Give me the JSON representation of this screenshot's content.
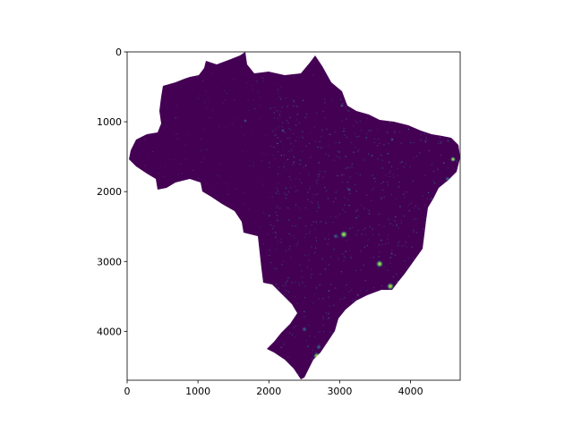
{
  "plot": {
    "type": "raster-image",
    "colormap": "viridis",
    "x_range": [
      0,
      4700
    ],
    "y_range": [
      0,
      4700
    ],
    "y_inverted": true,
    "x_ticks": [
      {
        "value": 0,
        "label": "0"
      },
      {
        "value": 1000,
        "label": "1000"
      },
      {
        "value": 2000,
        "label": "2000"
      },
      {
        "value": 3000,
        "label": "3000"
      },
      {
        "value": 4000,
        "label": "4000"
      }
    ],
    "y_ticks": [
      {
        "value": 0,
        "label": "0"
      },
      {
        "value": 1000,
        "label": "1000"
      },
      {
        "value": 2000,
        "label": "2000"
      },
      {
        "value": 3000,
        "label": "3000"
      },
      {
        "value": 4000,
        "label": "4000"
      }
    ],
    "colors": {
      "background_value": "#440154",
      "mid_value": "#3b528b",
      "high_value": "#21918c",
      "peak_value": "#fde725",
      "axes": "#000000"
    }
  }
}
